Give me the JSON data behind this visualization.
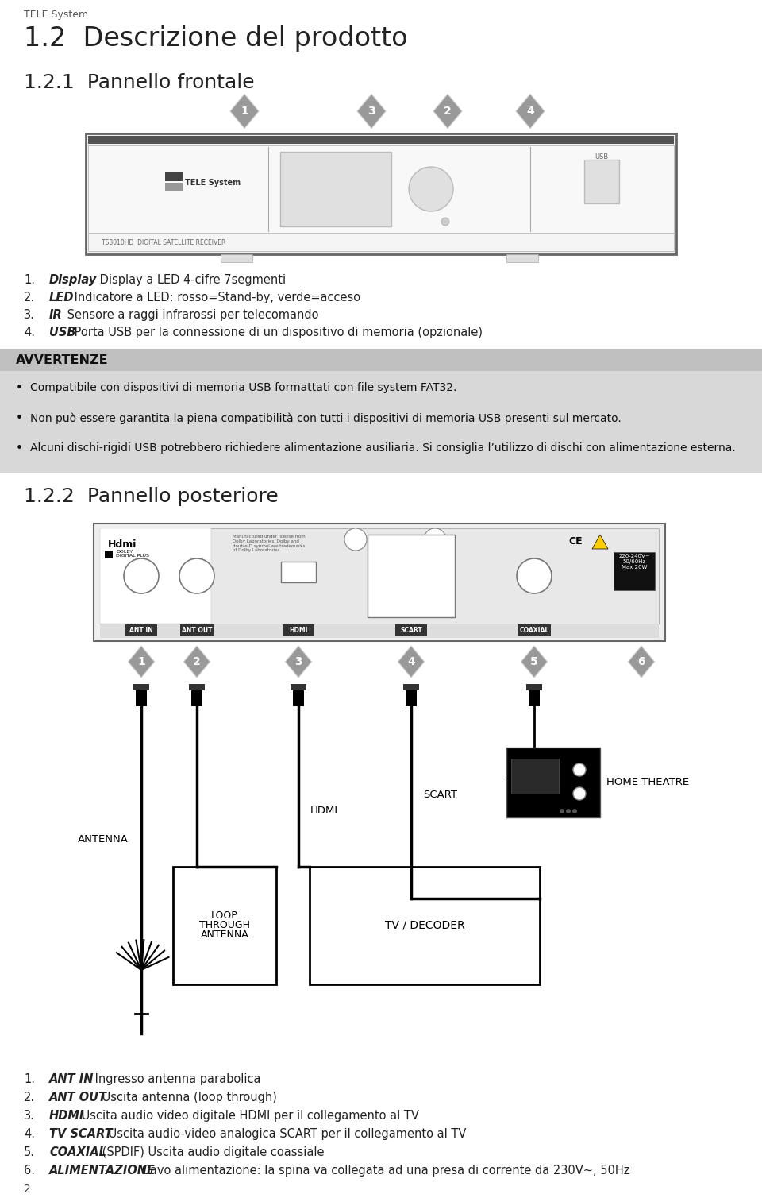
{
  "bg_color": "#ffffff",
  "header_text": "TELE System",
  "title1": "1.2  Descrizione del prodotto",
  "title2": "1.2.1  Pannello frontale",
  "title3": "1.2.2  Pannello posteriore",
  "list_items": [
    {
      "num": "1.",
      "bold": "Display",
      "text": " Display a LED 4-cifre 7segmenti"
    },
    {
      "num": "2.",
      "bold": "LED",
      "text": " Indicatore a LED: rosso=Stand-by, verde=acceso"
    },
    {
      "num": "3.",
      "bold": "IR",
      "text": " Sensore a raggi infrarossi per telecomando"
    },
    {
      "num": "4.",
      "bold": "USB",
      "text": " Porta USB per la connessione di un dispositivo di memoria (opzionale)"
    }
  ],
  "warning_title": "AVVERTENZE",
  "warning_bg": "#cccccc",
  "warning_title_bg": "#bbbbbb",
  "warning_items": [
    "Compatibile con dispositivi di memoria USB formattati con file system FAT32.",
    "Non può essere garantita la piena compatibilità con tutti i dispositivi di memoria USB presenti sul mercato.",
    "Alcuni dischi-rigidi USB potrebbero richiedere alimentazione ausiliaria. Si consiglia l’utilizzo di dischi con alimentazione esterna."
  ],
  "back_list_items": [
    {
      "num": "1.",
      "bold": "ANT IN",
      "text": " Ingresso antenna parabolica"
    },
    {
      "num": "2.",
      "bold": "ANT OUT",
      "text": " Uscita antenna (loop through)"
    },
    {
      "num": "3.",
      "bold": "HDMI",
      "text": " Uscita audio video digitale HDMI per il collegamento al TV"
    },
    {
      "num": "4.",
      "bold": "TV SCART",
      "text": " Uscita audio-video analogica SCART per il collegamento al TV"
    },
    {
      "num": "5.",
      "bold": "COAXIAL",
      "text": " (SPDIF) Uscita audio digitale coassiale"
    },
    {
      "num": "6.",
      "bold": "ALIMENTAZIONE",
      "text": " Cavo alimentazione: la spina va collegata ad una presa di corrente da 230V~, 50Hz"
    }
  ],
  "footer_text": "2"
}
